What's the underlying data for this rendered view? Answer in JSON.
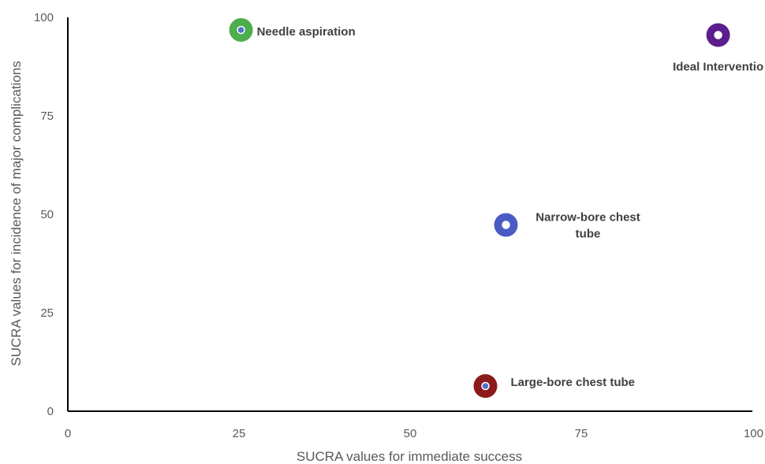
{
  "chart_data": {
    "type": "scatter",
    "title": "",
    "xlabel": "SUCRA values for immediate success",
    "ylabel": "SUCRA values for incidence of major complications",
    "xlim": [
      0,
      100
    ],
    "ylim": [
      0,
      100
    ],
    "x_ticks": [
      "0",
      "25",
      "50",
      "75",
      "100"
    ],
    "y_ticks": [
      "0",
      "25",
      "50",
      "75",
      "100"
    ],
    "grid": false,
    "legend": "none",
    "points": [
      {
        "label_lines": [
          "Needle aspiration"
        ],
        "x": 25.3,
        "y": 96.8,
        "color": "#4cae4c",
        "inner_color": "#4f6fd0"
      },
      {
        "label_lines": [
          "Ideal Interventio"
        ],
        "x": 95.0,
        "y": 95.5,
        "color": "#5b1e8c",
        "inner_color": "#ffffff"
      },
      {
        "label_lines": [
          "Narrow-bore chest",
          "tube"
        ],
        "x": 64.0,
        "y": 47.3,
        "color": "#4a5bc4",
        "inner_color": "#ffffff"
      },
      {
        "label_lines": [
          "Large-bore chest tube"
        ],
        "x": 61.0,
        "y": 6.4,
        "color": "#8b1a1a",
        "inner_color": "#4f6fd0"
      }
    ]
  }
}
